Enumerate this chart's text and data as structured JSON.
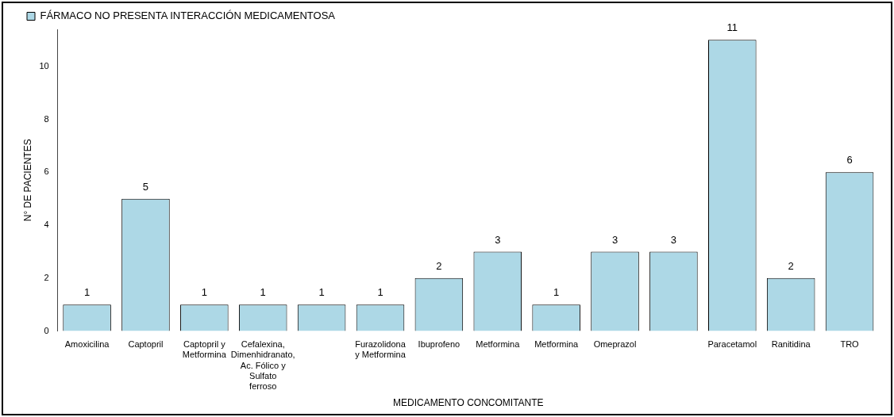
{
  "chart_data": {
    "type": "bar",
    "xlabel": "MEDICAMENTO CONCOMITANTE",
    "ylabel": "N° DE PACIENTES",
    "categories": [
      "Amoxicilina",
      "Captopril",
      "Captopril y Metformina",
      "Cefalexina, Dimenhidranato, Ac. Fólico y Sulfato ferroso",
      null,
      "Furazolidona y Metformina",
      "Ibuprofeno",
      "Metformina",
      "Metformina",
      "Omeprazol",
      null,
      "Paracetamol",
      "Ranitidina",
      "TRO"
    ],
    "series": [
      {
        "name": "FÁRMACO NO PRESENTA INTERACCIÓN MEDICAMENTOSA",
        "color": "#add8e6",
        "values": [
          1,
          5,
          1,
          1,
          1,
          1,
          2,
          3,
          1,
          3,
          3,
          11,
          2,
          6
        ]
      }
    ],
    "ylim": [
      0,
      11.4
    ],
    "yticks": [
      0,
      2,
      4,
      6,
      8,
      10
    ],
    "grid": false,
    "legend": "top left",
    "data_labels": true
  }
}
